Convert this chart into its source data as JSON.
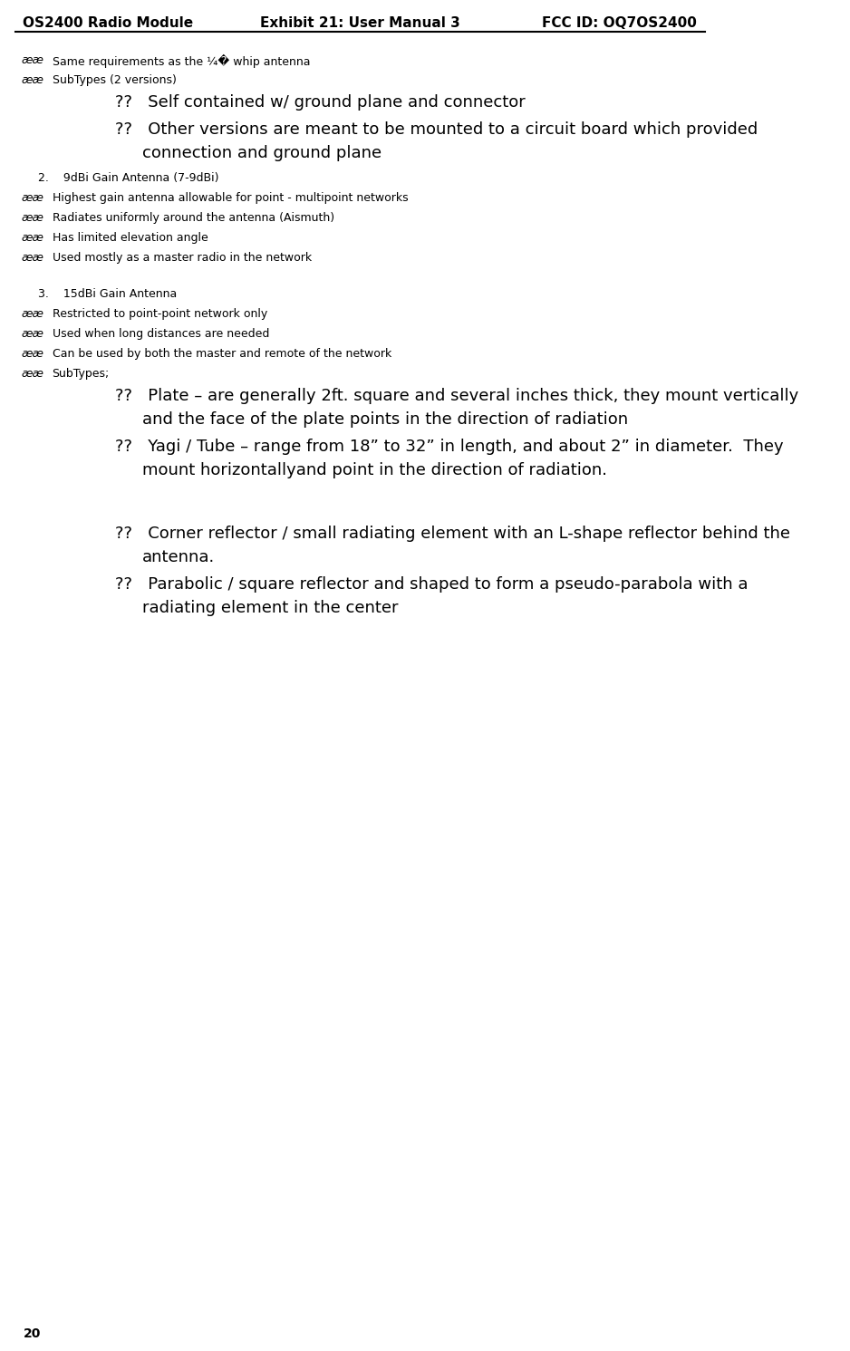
{
  "header_left": "OS2400 Radio Module",
  "header_center": "Exhibit 21: User Manual 3",
  "header_right": "FCC ID: OQ7OS2400",
  "footer_page": "20",
  "background_color": "#ffffff",
  "text_color": "#000000",
  "header_font_size": 11,
  "body_font_size": 9,
  "large_font_size": 13,
  "lines": [
    {
      "type": "bullet2",
      "text": "Same requirements as the ¼� whip antenna",
      "size": 9,
      "bold": false
    },
    {
      "type": "bullet2",
      "text": "SubTypes (2 versions)",
      "size": 9,
      "bold": false
    },
    {
      "type": "bullet3large",
      "text": "??  Self contained w/ ground plane and connector",
      "size": 13,
      "bold": false
    },
    {
      "type": "bullet3large2",
      "text": "??  Other versions are meant to be mounted to a circuit board which provided\n        connection and ground plane",
      "size": 13,
      "bold": false
    },
    {
      "type": "numbered",
      "text": "2.    9dBi Gain Antenna (7-9dBi)",
      "size": 9,
      "bold": false
    },
    {
      "type": "bullet2",
      "text": "Highest gain antenna allowable for point - multipoint networks",
      "size": 9,
      "bold": false
    },
    {
      "type": "bullet2",
      "text": "Radiates uniformly around the antenna (Aismuth)",
      "size": 9,
      "bold": false
    },
    {
      "type": "bullet2",
      "text": "Has limited elevation angle",
      "size": 9,
      "bold": false
    },
    {
      "type": "bullet2",
      "text": "Used mostly as a master radio in the network",
      "size": 9,
      "bold": false
    },
    {
      "type": "blank",
      "text": "",
      "size": 9,
      "bold": false
    },
    {
      "type": "numbered",
      "text": "3.    15dBi Gain Antenna",
      "size": 9,
      "bold": false
    },
    {
      "type": "bullet2",
      "text": "Restricted to point-point network only",
      "size": 9,
      "bold": false
    },
    {
      "type": "bullet2",
      "text": "Used when long distances are needed",
      "size": 9,
      "bold": false
    },
    {
      "type": "bullet2",
      "text": "Can be used by both the master and remote of the network",
      "size": 9,
      "bold": false
    },
    {
      "type": "bullet2",
      "text": "SubTypes;",
      "size": 9,
      "bold": false
    },
    {
      "type": "bullet3large",
      "text": "??  Plate – are generally 2ft. square and several inches thick, they mount vertically\n        and the face of the plate points in the direction of radiation",
      "size": 13,
      "bold": false
    },
    {
      "type": "bullet3large",
      "text": "??  Yagi / Tube – range from 18” to 32” in length, and about 2” in diameter.  They\n        mount horizontallyand point in the direction of radiation.",
      "size": 13,
      "bold": false
    },
    {
      "type": "blank",
      "text": "",
      "size": 9,
      "bold": false
    },
    {
      "type": "blank",
      "text": "",
      "size": 9,
      "bold": false
    },
    {
      "type": "bullet3large",
      "text": "??  Corner reflector / small radiating element with an L-shape reflector behind the\n        antenna.",
      "size": 13,
      "bold": false
    },
    {
      "type": "bullet3large",
      "text": "??  Parabolic / square reflector and shaped to form a pseudo-parabola with a\n        radiating element in the center",
      "size": 13,
      "bold": false
    }
  ]
}
